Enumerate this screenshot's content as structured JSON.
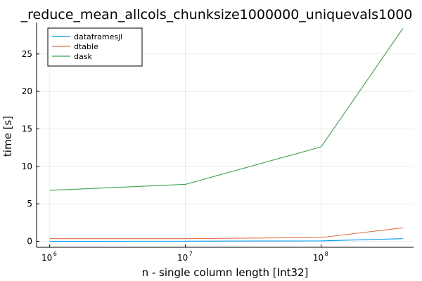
{
  "chart_data": {
    "type": "line",
    "title": "_reduce_mean_allcols_chunksize1000000_uniquevals1000",
    "xlabel": "n - single column length [Int32]",
    "ylabel": "time [s]",
    "xscale": "log",
    "xlim": [
      800000,
      480000000
    ],
    "ylim": [
      -0.8,
      29.2
    ],
    "xticks": [
      {
        "value": 1000000,
        "base": "10",
        "exp": "6"
      },
      {
        "value": 10000000,
        "base": "10",
        "exp": "7"
      },
      {
        "value": 100000000,
        "base": "10",
        "exp": "8"
      }
    ],
    "yticks": [
      0,
      5,
      10,
      15,
      20,
      25
    ],
    "grid": true,
    "legend_position": "top-left",
    "x": [
      1000000,
      10000000,
      100000000,
      400000000
    ],
    "series": [
      {
        "name": "dataframesjl",
        "color": "#009af9",
        "values": [
          0.0,
          0.01,
          0.05,
          0.35
        ]
      },
      {
        "name": "dtable",
        "color": "#e26f46",
        "values": [
          0.35,
          0.35,
          0.5,
          1.8
        ]
      },
      {
        "name": "dask",
        "color": "#3da44d",
        "values": [
          6.8,
          7.6,
          12.6,
          28.4
        ]
      }
    ]
  }
}
